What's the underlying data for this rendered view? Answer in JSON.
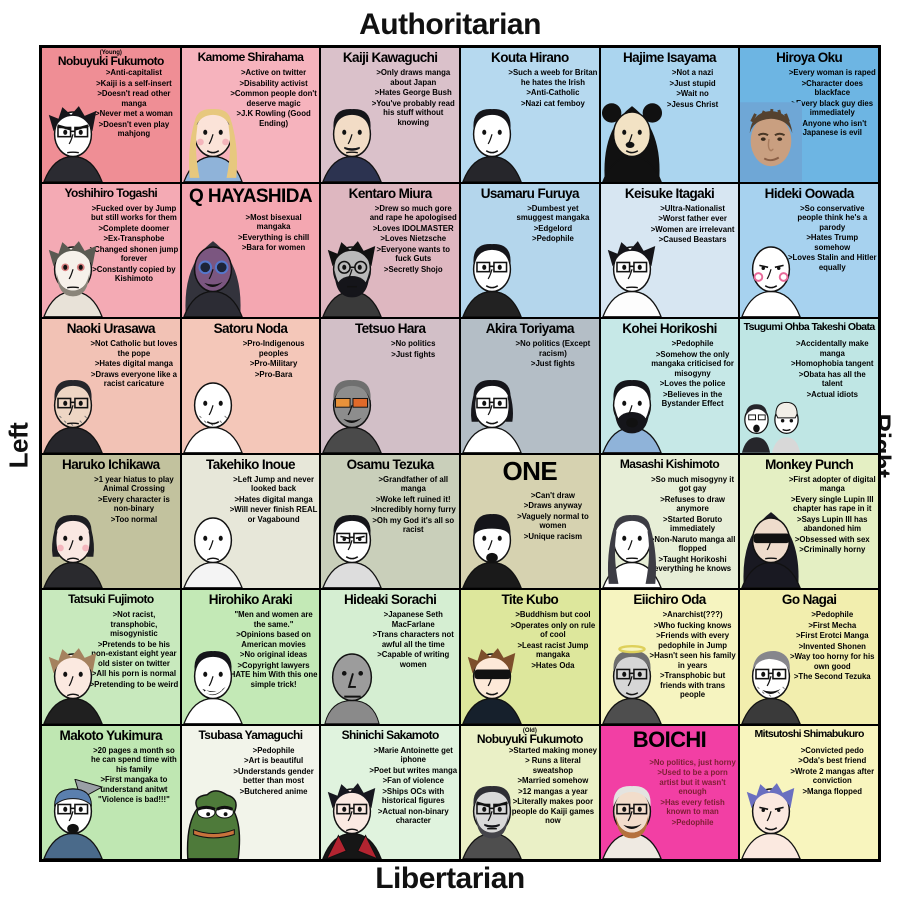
{
  "axes": {
    "top": "Authoritarian",
    "bottom": "Libertarian",
    "left": "Left",
    "right": "Right"
  },
  "colors": {
    "page_bg": "#ffffff",
    "grid_border": "#000000",
    "default_text": "#000000",
    "boichi_bullet_text": "#7c1f33",
    "boichi_bg": "#f23fa4"
  },
  "cells": [
    {
      "name": "Nobuyuki Fukumoto",
      "prefix": "(Young)",
      "bg": "#ef8e95",
      "bullets": [
        ">Anti-capitalist",
        ">Kaiji is a self-insert",
        ">Doesn't read other manga",
        ">Never met a woman",
        ">Doesn't even play mahjong"
      ],
      "avatar": {
        "icon": "wojak-avatar",
        "skin": "#ffffff",
        "hair": "#15151a",
        "style": "messy",
        "shirt": "#2b2b31",
        "feats": [
          "glasses",
          "angry",
          "frown"
        ]
      }
    },
    {
      "name": "Kamome Shirahama",
      "bg": "#f6b3bd",
      "bullets": [
        ">Active on twitter",
        ">Disability activist",
        ">Common people don't deserve magic",
        ">J.K Rowling (Good Ending)"
      ],
      "avatar": {
        "icon": "wojak-avatar",
        "skin": "#fbe3d8",
        "hair": "#e7c87e",
        "style": "long",
        "shirt": "#8fb3d9",
        "feats": [
          "blush",
          "smile"
        ]
      }
    },
    {
      "name": "Kaiji Kawaguchi",
      "bg": "#dac1ca",
      "bullets": [
        ">Only draws manga about Japan",
        ">Hates George Bush",
        ">You've probably read his stuff without knowing"
      ],
      "avatar": {
        "icon": "wojak-avatar",
        "skin": "#f2dcc6",
        "hair": "#15151a",
        "style": "top",
        "shirt": "#2c3350",
        "feats": [
          "mustache",
          "frown"
        ]
      }
    },
    {
      "name": "Kouta Hirano",
      "bg": "#b6d9ef",
      "bullets": [
        ">Such a weeb for Britan he hates the Irish",
        ">Anti-Catholic",
        ">Nazi cat femboy"
      ],
      "avatar": {
        "icon": "wojak-avatar",
        "skin": "#ffffff",
        "hair": "#15151a",
        "style": "top",
        "shirt": "#26262b",
        "feats": [
          "smile"
        ]
      }
    },
    {
      "name": "Hajime Isayama",
      "bg": "#abd5ef",
      "bullets": [
        ">Not a nazi",
        ">Just stupid",
        ">Wait no",
        ">Jesus Christ"
      ],
      "avatar": {
        "icon": "mouse-wojak-avatar",
        "skin": "#f2e2c4",
        "hair": "#111111",
        "style": "hood",
        "shirt": "#111111",
        "feats": [
          "mouse-ears",
          "mouse-nose",
          "smile"
        ]
      }
    },
    {
      "name": "Hiroya Oku",
      "bg": "#6db5e3",
      "bullets": [
        ">Every woman is raped",
        ">Character does blackface",
        ">Every black guy dies immediately",
        ">Anyone who isn't Japanese is evil"
      ],
      "avatar": {
        "icon": "photo-avatar",
        "type": "photo",
        "skin": "#c99f80",
        "hair": "#55422f"
      }
    },
    {
      "name": "Yoshihiro Togashi",
      "bg": "#f4aab4",
      "bullets": [
        ">Fucked over by Jump but still works for them",
        ">Complete doomer",
        ">Ex-Transphobe",
        ">Changed shonen jump forever",
        ">Constantly copied by Kishimoto"
      ],
      "avatar": {
        "icon": "wojak-avatar",
        "skin": "#f6f1ea",
        "hair": "#5a5a52",
        "style": "messy",
        "shirt": "#e8e2d8",
        "beard": "#8a857a",
        "feats": [
          "red-eyes",
          "beard",
          "frown"
        ]
      }
    },
    {
      "name": "Q HAYASHIDA",
      "bg": "#f4a7b1",
      "bullets": [
        ">Most bisexual mangaka",
        ">Everything is chill",
        ">Bara for women"
      ],
      "avatar": {
        "icon": "masked-avatar",
        "skin": "#7b5680",
        "hair": "#33333c",
        "style": "hood",
        "shirt": "#2c2c34",
        "feats": [
          "goggles",
          "grin"
        ]
      }
    },
    {
      "name": "Kentaro Miura",
      "bg": "#deb7c0",
      "bullets": [
        ">Drew so much gore and rape he apologised",
        ">Loves IDOLMASTER",
        ">Loves Nietzsche",
        ">Everyone wants to fuck Guts",
        ">Secretly  Shojo"
      ],
      "avatar": {
        "icon": "wojak-avatar",
        "skin": "#b9b9b9",
        "hair": "#111111",
        "style": "messy",
        "shirt": "#3a3a3a",
        "feats": [
          "round-glasses",
          "beard-full"
        ]
      }
    },
    {
      "name": "Usamaru Furuya",
      "bg": "#b4d6ec",
      "bullets": [
        ">Dumbest yet smuggest mangaka",
        ">Edgelord",
        ">Pedophile"
      ],
      "avatar": {
        "icon": "wojak-avatar",
        "skin": "#ffffff",
        "hair": "#15151a",
        "style": "top",
        "shirt": "#222222",
        "feats": [
          "glasses",
          "smile"
        ]
      }
    },
    {
      "name": "Keisuke Itagaki",
      "bg": "#d7e6f2",
      "bullets": [
        ">Ultra-Nationalist",
        ">Worst father ever",
        ">Women are irrelevant",
        ">Caused Beastars"
      ],
      "avatar": {
        "icon": "wojak-avatar",
        "skin": "#fdfdfd",
        "hair": "#15151a",
        "style": "messy",
        "shirt": "none",
        "feats": [
          "glasses",
          "frown"
        ]
      }
    },
    {
      "name": "Hideki Oowada",
      "bg": "#a7d2ef",
      "bullets": [
        ">So conservative people think he's a parody",
        ">Hates Trump somehow",
        ">Loves Stalin and Hitler equally"
      ],
      "avatar": {
        "icon": "wojak-avatar",
        "skin": "#ffffff",
        "hair": "none",
        "style": "none",
        "shirt": "none",
        "feats": [
          "blush-swirl",
          "smug",
          "smile"
        ]
      }
    },
    {
      "name": "Naoki Urasawa",
      "bg": "#f2c2b5",
      "bullets": [
        ">Not Catholic but loves the pope",
        ">Hates digital manga",
        ">Draws everyone like a racist caricature"
      ],
      "avatar": {
        "icon": "wojak-avatar",
        "skin": "#eed6c4",
        "hair": "#26262b",
        "style": "top",
        "shirt": "#26262b",
        "feats": [
          "glasses",
          "stubble",
          "frown"
        ]
      }
    },
    {
      "name": "Satoru Noda",
      "bg": "#f4c7b9",
      "bullets": [
        ">Pro-Indigenous peoples",
        ">Pro-Military",
        ">Pro-Bara"
      ],
      "avatar": {
        "icon": "wojak-avatar",
        "skin": "#ffffff",
        "hair": "none",
        "style": "none",
        "shirt": "none",
        "feats": [
          "stubble",
          "smile"
        ]
      }
    },
    {
      "name": "Tetsuo Hara",
      "bg": "#d2bfc7",
      "bullets": [
        ">No politics",
        ">Just fights"
      ],
      "avatar": {
        "icon": "wojak-avatar",
        "skin": "#8d8d8d",
        "hair": "#6f6f6f",
        "style": "top",
        "shirt": "#4a4a4a",
        "feats": [
          "orange-glasses",
          "grin"
        ]
      }
    },
    {
      "name": "Akira Toriyama",
      "bg": "#b4bec6",
      "bullets": [
        ">No politics (Except racism)",
        ">Just fights"
      ],
      "avatar": {
        "icon": "wojak-avatar",
        "skin": "#ffffff",
        "hair": "#15151a",
        "style": "bob",
        "shirt": "none",
        "feats": [
          "glasses",
          "smile"
        ]
      }
    },
    {
      "name": "Kohei Horikoshi",
      "bg": "#c6e8e7",
      "bullets": [
        ">Pedophile",
        ">Somehow the only mangaka criticised for misogyny",
        ">Loves the police",
        ">Believes in the Bystander Effect"
      ],
      "avatar": {
        "icon": "wojak-avatar",
        "skin": "#ffffff",
        "hair": "#15151a",
        "style": "top",
        "shirt": "#8fb3d9",
        "feats": [
          "beard-full",
          "open-mouth"
        ]
      }
    },
    {
      "name": "Tsugumi Ohba   Takeshi Obata",
      "bg": "#bfe6e4",
      "bullets": [
        ">Accidentally make manga",
        ">Homophobia tangent",
        ">Obata has all the talent",
        ">Actual idiots"
      ],
      "avatar": {
        "icon": "duo-avatar",
        "type": "duo",
        "skin": "#ffffff",
        "hair": "#26262b"
      }
    },
    {
      "name": "Haruko Ichikawa",
      "bg": "#c2c29e",
      "bullets": [
        ">1 year hiatus to play  Animal Crossing",
        ">Every character is non-binary",
        ">Too normal"
      ],
      "avatar": {
        "icon": "wojak-avatar",
        "skin": "#fae8e2",
        "hair": "#1d1d22",
        "style": "bob",
        "shirt": "#2a2a2e",
        "feats": [
          "blush",
          "sad"
        ]
      }
    },
    {
      "name": "Takehiko Inoue",
      "bg": "#e7e7d9",
      "bullets": [
        ">Left Jump and never looked back",
        ">Hates digital manga",
        ">Will never finish REAL or Vagabound"
      ],
      "avatar": {
        "icon": "wojak-avatar",
        "skin": "#ffffff",
        "hair": "none",
        "style": "none",
        "shirt": "#f4f4f4",
        "feats": [
          "sad"
        ]
      }
    },
    {
      "name": "Osamu Tezuka",
      "bg": "#c9cfba",
      "bullets": [
        ">Grandfather of all manga",
        ">Woke left ruined it!",
        ">Incredibly horny furry",
        ">Oh my God it's all so racist"
      ],
      "avatar": {
        "icon": "wojak-avatar",
        "skin": "#ffffff",
        "hair": "#15151a",
        "style": "top",
        "shirt": "#dddddd",
        "feats": [
          "glasses",
          "smug",
          "smile"
        ]
      }
    },
    {
      "name": "ONE",
      "bg": "#d6d2b0",
      "bullets": [
        ">Can't draw",
        ">Draws anyway",
        ">Vaguely normal to women",
        ">Unique racism"
      ],
      "avatar": {
        "icon": "wojak-avatar",
        "skin": "#ffffff",
        "hair": "#15151a",
        "style": "bowl",
        "shirt": "#1a1a1a",
        "feats": [
          "open-mouth"
        ]
      }
    },
    {
      "name": "Masashi Kishimoto",
      "bg": "#e7eed7",
      "bullets": [
        ">So much misogyny it got gay",
        ">Refuses to draw anymore",
        ">Started Boruto immediately",
        ">Non-Naruto manga all flopped",
        ">Taught Horikoshi everything he knows"
      ],
      "avatar": {
        "icon": "wojak-avatar",
        "skin": "#ffffff",
        "hair": "#3c3c44",
        "style": "long",
        "shirt": "none",
        "feats": [
          "frown"
        ]
      }
    },
    {
      "name": "Monkey Punch",
      "bg": "#e4efc3",
      "bullets": [
        ">First adopter of digital manga",
        ">Every single Lupin III chapter has rape in it",
        ">Says Lupin III has abandoned him",
        ">Obsessed with sex",
        ">Criminally horny"
      ],
      "avatar": {
        "icon": "hooded-avatar",
        "skin": "#efdccc",
        "hair": "#191922",
        "style": "hood",
        "shirt": "#191922",
        "feats": [
          "sunglasses",
          "frown"
        ]
      }
    },
    {
      "name": "Tatsuki Fujimoto",
      "bg": "#c8e9bd",
      "bullets": [
        ">Not racist, transphobic, misogynistic",
        ">Pretends to be his non-existant eight year old sister on twitter",
        ">All his porn is normal",
        ">Pretending to be weird"
      ],
      "avatar": {
        "icon": "wojak-avatar",
        "skin": "#fbe9e0",
        "hair": "#a5825f",
        "style": "messy",
        "shirt": "#202020",
        "feats": [
          "sad"
        ]
      }
    },
    {
      "name": "Hirohiko Araki",
      "bg": "#c3e9b6",
      "bullets": [
        "\"Men and women are the same.\"",
        ">Opinions based on American movies",
        ">No original ideas",
        ">Copyright lawyers HATE him With this one simple trick!"
      ],
      "avatar": {
        "icon": "wojak-avatar",
        "skin": "#ffffff",
        "hair": "#15151a",
        "style": "top",
        "shirt": "none",
        "feats": [
          "laugh"
        ]
      }
    },
    {
      "name": "Hideaki Sorachi",
      "bg": "#d5eed2",
      "bullets": [
        ">Japanese Seth MacFarlane",
        ">Trans characters not awful all the time",
        ">Capable of writing women"
      ],
      "avatar": {
        "icon": "npc-avatar",
        "type": "npc",
        "skin": "#9c9c9c"
      }
    },
    {
      "name": "Tite Kubo",
      "bg": "#dde79c",
      "bullets": [
        ">Buddhism but cool",
        ">Operates only on rule of cool",
        ">Least racist Jump mangaka",
        ">Hates Oda"
      ],
      "avatar": {
        "icon": "wojak-avatar",
        "skin": "#fde9d8",
        "hair": "#7d4f2c",
        "style": "messy",
        "shirt": "#16202c",
        "feats": [
          "sunglasses",
          "smile"
        ]
      }
    },
    {
      "name": "Eiichiro Oda",
      "bg": "#f6f4c0",
      "bullets": [
        ">Anarchist(???)",
        ">Who fucking knows",
        ">Friends with every pedophile in Jump",
        ">Hasn't seen his family in years",
        ">Transphobic but friends with trans people"
      ],
      "avatar": {
        "icon": "wojak-avatar",
        "skin": "#d6d6d6",
        "hair": "#6e6e6e",
        "style": "top",
        "shirt": "#4e4e4e",
        "feats": [
          "glasses",
          "smile",
          "halo"
        ]
      }
    },
    {
      "name": "Go Nagai",
      "bg": "#f2eeae",
      "bullets": [
        ">Pedophile",
        ">First Mecha",
        ">First Erotci Manga",
        ">Invented Shonen",
        ">Way too horny for his own good",
        ">The Second Tezuka"
      ],
      "avatar": {
        "icon": "wojak-avatar",
        "skin": "#ffffff",
        "hair": "#86868c",
        "style": "swept",
        "shirt": "#3a3a3a",
        "feats": [
          "glasses",
          "grin",
          "stubble"
        ]
      }
    },
    {
      "name": "Makoto Yukimura",
      "bg": "#bfe7b2",
      "bullets": [
        ">20 pages a month so he can spend time with his family",
        ">First mangaka to understand anitwt",
        "\"Violence is bad!!!\""
      ],
      "avatar": {
        "icon": "wojak-avatar",
        "skin": "#ffffff",
        "hair": "none",
        "style": "bandana",
        "shirt": "#4a6a8a",
        "feats": [
          "glasses",
          "open-mouth",
          "axe"
        ]
      }
    },
    {
      "name": "Tsubasa Yamaguchi",
      "bg": "#f2f4ea",
      "bullets": [
        ">Pedophile",
        ">Art is beautiful",
        ">Understands gender better than most",
        ">Butchered anime"
      ],
      "avatar": {
        "icon": "pepe-avatar",
        "type": "pepe",
        "skin": "#4e7a3a"
      }
    },
    {
      "name": "Shinichi Sakamoto",
      "bg": "#e0f3de",
      "bullets": [
        ">Marie Antoinette get iphone",
        ">Poet but writes manga",
        ">Fan of violence",
        ">Ships OCs with historical figures",
        ">Actual non-binary character"
      ],
      "avatar": {
        "icon": "wojak-avatar",
        "skin": "#fbe9e2",
        "hair": "#17171f",
        "style": "messy",
        "shirt": "#161616",
        "feats": [
          "glasses",
          "sad",
          "collar"
        ]
      }
    },
    {
      "name": "Nobuyuki Fukumoto",
      "prefix": "(Old)",
      "bg": "#eaf0c6",
      "bullets": [
        ">Started making money",
        "> Runs a literal sweatshop",
        ">Married somehow",
        ">12 mangas a year",
        ">Literally makes poor people do Kaiji games now"
      ],
      "avatar": {
        "icon": "wojak-avatar",
        "skin": "#d9d9d9",
        "hair": "#2e2e34",
        "style": "top",
        "shirt": "#4e4e4e",
        "beard": "#44444a",
        "feats": [
          "glasses",
          "angry",
          "beard",
          "mustache"
        ]
      }
    },
    {
      "name": "BOICHI",
      "bg": "#f23fa4",
      "bullet_color": "#7c1f33",
      "bullets": [
        ">No politics, just horny",
        ">Used to be a porn artist but it wasn't enough",
        ">Has every fetish known to man",
        ">Pedophile"
      ],
      "avatar": {
        "icon": "wojak-avatar",
        "skin": "#f2ddcb",
        "hair": "#e4e4e0",
        "style": "top",
        "shirt": "#efeae2",
        "beard": "#b5713d",
        "feats": [
          "glasses",
          "grin",
          "beard"
        ]
      }
    },
    {
      "name": "Mitsutoshi Shimabukuro",
      "bg": "#f8f5be",
      "bullets": [
        ">Convicted pedo",
        ">Oda's best friend",
        ">Wrote 2 mangas after conviction",
        ">Manga flopped"
      ],
      "avatar": {
        "icon": "wojak-avatar",
        "skin": "#fbe9e0",
        "hair": "#6a6fc0",
        "style": "messy",
        "shirt": "none",
        "feats": [
          "smug",
          "smile"
        ]
      }
    }
  ]
}
